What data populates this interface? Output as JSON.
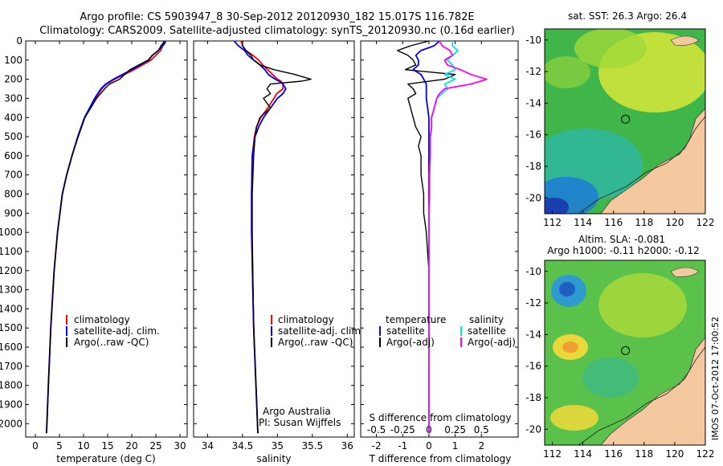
{
  "header": {
    "line1": "Argo profile: CS 5903947_8 30-Sep-2012 20120930_182 15.017S 116.782E",
    "line2": "Climatology: CARS2009. Satellite-adjusted climatology: synTS_20120930.nc (0.16d earlier)"
  },
  "colors": {
    "climatology": "#ff0000",
    "satellite": "#0000ff",
    "argo": "#000000",
    "sal_satellite": "#00e5e5",
    "sal_argo": "#ff00ff",
    "land": "#f5c9a0"
  },
  "depth_axis": {
    "ylim": [
      0,
      2070
    ],
    "ticks": [
      0,
      100,
      200,
      300,
      400,
      500,
      600,
      700,
      800,
      900,
      1000,
      1100,
      1200,
      1300,
      1400,
      1500,
      1600,
      1700,
      1800,
      1900,
      2000
    ]
  },
  "chart_data": [
    {
      "id": "temperature",
      "type": "line",
      "xlabel": "temperature (deg C)",
      "xlim": [
        -2,
        31.5
      ],
      "xticks": [
        0,
        5,
        10,
        15,
        20,
        25,
        30
      ],
      "depth": [
        0,
        10,
        20,
        50,
        75,
        100,
        150,
        200,
        225,
        250,
        300,
        400,
        500,
        600,
        700,
        800,
        1000,
        1200,
        1500,
        1800,
        2000,
        2050
      ],
      "series": [
        {
          "name": "climatology",
          "color": "#ff0000",
          "values": [
            26.6,
            26.6,
            26.5,
            26,
            25,
            24,
            20.5,
            16.5,
            14.8,
            13.8,
            12.5,
            10.2,
            8.8,
            7.6,
            6.5,
            5.6,
            4.6,
            3.9,
            3.2,
            2.7,
            2.4,
            2.3
          ]
        },
        {
          "name": "satellite-adj. clim.",
          "color": "#0000ff",
          "values": [
            27,
            26.9,
            26.6,
            25.5,
            24.3,
            23.5,
            20,
            16.2,
            14.6,
            13.6,
            12.3,
            10.2,
            8.8,
            7.6,
            6.5,
            5.6,
            4.6,
            3.9,
            3.2,
            2.7,
            2.4,
            2.3
          ]
        },
        {
          "name": "Argo(..raw -QC)",
          "color": "#000000",
          "values": [
            26.6,
            26.6,
            26.2,
            25.5,
            24.2,
            23.4,
            19.6,
            17.5,
            15.4,
            14.4,
            12.7,
            10.3,
            8.9,
            7.6,
            6.5,
            5.6,
            4.6,
            3.9,
            3.2,
            2.7,
            2.4,
            2.3
          ]
        }
      ],
      "legend": [
        "climatology",
        "satellite-adj. clim.",
        "Argo(..raw -QC)"
      ]
    },
    {
      "id": "salinity",
      "type": "line",
      "xlabel": "salinity",
      "xlim": [
        33.8,
        36.1
      ],
      "xticks": [
        34,
        34.5,
        35,
        35.5,
        36
      ],
      "xticklabels": [
        "34",
        "34.5",
        "35",
        "35.5",
        "36"
      ],
      "depth": [
        0,
        25,
        50,
        75,
        100,
        125,
        150,
        175,
        200,
        210,
        225,
        250,
        275,
        300,
        350,
        400,
        450,
        500,
        600,
        800,
        1000,
        1500,
        2050
      ],
      "series": [
        {
          "name": "climatology",
          "color": "#ff0000",
          "values": [
            34.48,
            34.5,
            34.55,
            34.65,
            34.73,
            34.79,
            34.86,
            34.93,
            35.0,
            35.05,
            35.08,
            35.08,
            34.99,
            34.95,
            34.86,
            34.76,
            34.7,
            34.67,
            34.64,
            34.63,
            34.63,
            34.66,
            34.72
          ]
        },
        {
          "name": "satellite-adj. clim.",
          "color": "#0000ff",
          "values": [
            34.38,
            34.44,
            34.53,
            34.58,
            34.66,
            34.75,
            34.82,
            34.87,
            34.97,
            35.02,
            35.08,
            35.12,
            35.08,
            35.0,
            34.9,
            34.8,
            34.73,
            34.68,
            34.64,
            34.63,
            34.63,
            34.66,
            34.72
          ]
        },
        {
          "name": "Argo(..raw -QC)",
          "color": "#000000",
          "values": [
            34.5,
            34.5,
            34.55,
            34.62,
            34.66,
            34.75,
            34.95,
            35.25,
            35.48,
            35.35,
            34.9,
            34.85,
            34.9,
            34.8,
            34.9,
            34.75,
            34.7,
            34.68,
            34.66,
            34.64,
            34.64,
            34.66,
            34.72
          ]
        }
      ],
      "legend": [
        "climatology",
        "satellite-adj. clim.",
        "Argo(..raw -QC)"
      ],
      "annotation": [
        "Argo Australia",
        "PI: Susan Wijffels"
      ]
    },
    {
      "id": "differences",
      "type": "line",
      "xlabel": "T difference from climatology",
      "top_label": "S difference from climatology",
      "xlim": [
        -2.6,
        3.4
      ],
      "xticks": [
        -2,
        -1,
        0,
        1,
        2
      ],
      "s_ticks": [
        {
          "t": -2,
          "label": "-0.5"
        },
        {
          "t": -1,
          "label": "-0.25"
        },
        {
          "t": 0,
          "label": "0"
        },
        {
          "t": 1,
          "label": "0.25"
        },
        {
          "t": 2,
          "label": "0.5"
        }
      ],
      "depth": [
        0,
        25,
        50,
        75,
        100,
        125,
        150,
        175,
        200,
        225,
        250,
        275,
        300,
        350,
        400,
        450,
        500,
        550,
        600,
        700,
        800,
        900,
        1000,
        1200,
        1500,
        1800,
        2050
      ],
      "series": [
        {
          "name": "temperature satellite",
          "color": "#0000ff",
          "values": [
            0.4,
            0.2,
            -0.3,
            -0.5,
            -0.4,
            -0.4,
            -0.6,
            -0.3,
            -0.2,
            -0.1,
            -0.1,
            -0.1,
            -0.1,
            -0.05,
            0,
            0,
            0,
            0,
            0,
            0,
            0,
            0,
            0,
            0,
            0,
            0,
            0
          ]
        },
        {
          "name": "temperature Argo(-adj)",
          "color": "#000000",
          "values": [
            0,
            -0.7,
            -1.2,
            -0.8,
            -0.6,
            -0.5,
            -0.9,
            1.0,
            0.6,
            -0.8,
            -0.6,
            -0.5,
            -0.8,
            -0.7,
            -0.6,
            -0.5,
            -0.3,
            -0.4,
            -0.3,
            -0.3,
            -0.2,
            -0.2,
            -0.1,
            0,
            0,
            0,
            0
          ]
        },
        {
          "name": "salinity satellite",
          "color": "#00e5e5",
          "values": [
            0.9,
            0.9,
            1.1,
            0.9,
            0.7,
            0.9,
            1.0,
            0.6,
            1.0,
            0.6,
            0.7,
            0.5,
            0.3,
            0.2,
            0.1,
            0.1,
            0.05,
            0.05,
            0.05,
            0.02,
            0.02,
            0,
            0,
            0,
            0,
            0,
            0
          ]
        },
        {
          "name": "salinity Argo(-adj)",
          "color": "#ff00ff",
          "values": [
            0.4,
            0.5,
            0.8,
            0.9,
            0.6,
            0.7,
            1.2,
            1.6,
            2.2,
            1.6,
            0.6,
            0.4,
            0.3,
            0.2,
            0.1,
            0.1,
            0.05,
            0.05,
            0.05,
            0.02,
            0.02,
            0,
            0,
            0,
            0,
            0,
            0
          ]
        }
      ],
      "legend_temperature": {
        "title": "temperature",
        "items": [
          "satellite",
          "Argo(-adj)"
        ]
      },
      "legend_salinity": {
        "title": "salinity",
        "items": [
          "satellite",
          "Argo(-adj)"
        ]
      }
    }
  ],
  "maps": {
    "sst_title": "sat. SST: 26.3 Argo: 26.4",
    "sla_title_1": "Altim. SLA: -0.081",
    "sla_title_2": "Argo h1000: -0.11 h2000: -0.12",
    "lon_ticks": [
      "112",
      "114",
      "116",
      "118",
      "120",
      "122"
    ],
    "lat_ticks": [
      "-10",
      "-12",
      "-14",
      "-16",
      "-18",
      "-20"
    ],
    "float_position": {
      "lon": 116.782,
      "lat": -15.017
    }
  },
  "watermark": "IMOS 07-Oct-2012 17:00:52"
}
